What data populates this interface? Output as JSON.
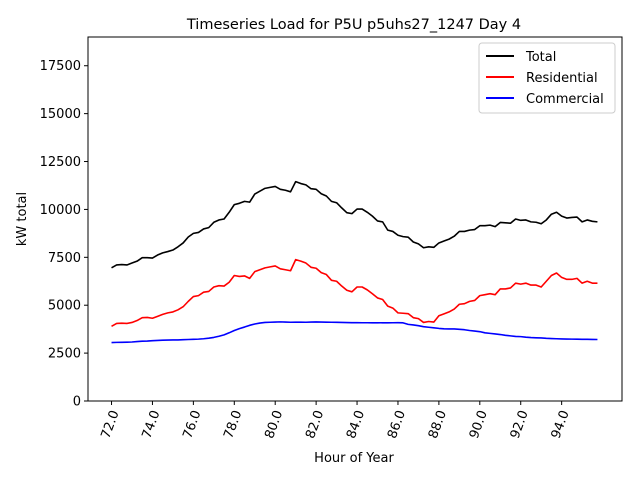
{
  "chart_data": {
    "type": "line",
    "title": "Timeseries Load for P5U p5uhs27_1247  Day 4",
    "xlabel": "Hour of Year",
    "ylabel": "kW total",
    "xlim": [
      70.85,
      96.95
    ],
    "ylim": [
      0,
      19000
    ],
    "xticks": [
      72,
      74,
      76,
      78,
      80,
      82,
      84,
      86,
      88,
      90,
      92,
      94
    ],
    "xtick_labels": [
      "72.0",
      "74.0",
      "76.0",
      "78.0",
      "80.0",
      "82.0",
      "84.0",
      "86.0",
      "88.0",
      "90.0",
      "92.0",
      "94.0"
    ],
    "yticks": [
      0,
      2500,
      5000,
      7500,
      10000,
      12500,
      15000,
      17500
    ],
    "ytick_labels": [
      "0",
      "2500",
      "5000",
      "7500",
      "10000",
      "12500",
      "15000",
      "17500"
    ],
    "legend_position": "top-right",
    "grid": false,
    "x_start": 72.0,
    "x_step": 0.25,
    "series": [
      {
        "name": "Total",
        "color": "#000000",
        "values": [
          6950,
          7100,
          7120,
          7100,
          7200,
          7300,
          7480,
          7480,
          7460,
          7620,
          7730,
          7800,
          7880,
          8050,
          8250,
          8560,
          8750,
          8800,
          8980,
          9050,
          9330,
          9450,
          9500,
          9850,
          10250,
          10320,
          10420,
          10380,
          10800,
          10950,
          11100,
          11150,
          11200,
          11050,
          11000,
          10920,
          11450,
          11350,
          11280,
          11080,
          11050,
          10820,
          10700,
          10420,
          10350,
          10080,
          9830,
          9780,
          10020,
          10020,
          9850,
          9650,
          9400,
          9350,
          8920,
          8850,
          8650,
          8580,
          8550,
          8300,
          8200,
          8000,
          8050,
          8020,
          8250,
          8350,
          8450,
          8600,
          8850,
          8850,
          8920,
          8950,
          9150,
          9150,
          9180,
          9100,
          9320,
          9300,
          9280,
          9500,
          9430,
          9450,
          9350,
          9330,
          9250,
          9450,
          9750,
          9850,
          9650,
          9550,
          9580,
          9600,
          9350,
          9450,
          9380,
          9350
        ]
      },
      {
        "name": "Residential",
        "color": "#ff0000",
        "values": [
          3900,
          4050,
          4060,
          4050,
          4100,
          4200,
          4350,
          4360,
          4320,
          4420,
          4520,
          4600,
          4650,
          4760,
          4920,
          5200,
          5450,
          5500,
          5680,
          5720,
          5950,
          6020,
          6000,
          6200,
          6550,
          6500,
          6530,
          6400,
          6750,
          6850,
          6950,
          7000,
          7050,
          6900,
          6850,
          6800,
          7380,
          7300,
          7200,
          6980,
          6930,
          6700,
          6600,
          6300,
          6250,
          6000,
          5780,
          5700,
          5950,
          5950,
          5800,
          5600,
          5380,
          5300,
          4950,
          4850,
          4600,
          4580,
          4560,
          4350,
          4300,
          4100,
          4150,
          4120,
          4450,
          4550,
          4650,
          4800,
          5050,
          5080,
          5200,
          5250,
          5500,
          5550,
          5600,
          5550,
          5850,
          5850,
          5900,
          6150,
          6100,
          6150,
          6050,
          6050,
          5950,
          6250,
          6550,
          6680,
          6450,
          6350,
          6350,
          6400,
          6150,
          6250,
          6150,
          6150
        ]
      },
      {
        "name": "Commercial",
        "color": "#0000ff",
        "values": [
          3050,
          3060,
          3065,
          3070,
          3080,
          3100,
          3120,
          3130,
          3150,
          3160,
          3175,
          3180,
          3190,
          3190,
          3200,
          3210,
          3220,
          3230,
          3250,
          3280,
          3320,
          3380,
          3450,
          3560,
          3680,
          3780,
          3860,
          3950,
          4020,
          4070,
          4100,
          4110,
          4120,
          4130,
          4120,
          4110,
          4115,
          4115,
          4110,
          4120,
          4125,
          4120,
          4115,
          4110,
          4105,
          4100,
          4095,
          4090,
          4090,
          4085,
          4085,
          4080,
          4080,
          4085,
          4080,
          4085,
          4090,
          4080,
          4000,
          3970,
          3930,
          3880,
          3850,
          3820,
          3790,
          3770,
          3760,
          3760,
          3740,
          3720,
          3680,
          3650,
          3620,
          3560,
          3530,
          3500,
          3470,
          3430,
          3400,
          3370,
          3360,
          3330,
          3310,
          3300,
          3290,
          3270,
          3260,
          3250,
          3240,
          3235,
          3230,
          3225,
          3220,
          3220,
          3215,
          3210
        ]
      }
    ]
  }
}
